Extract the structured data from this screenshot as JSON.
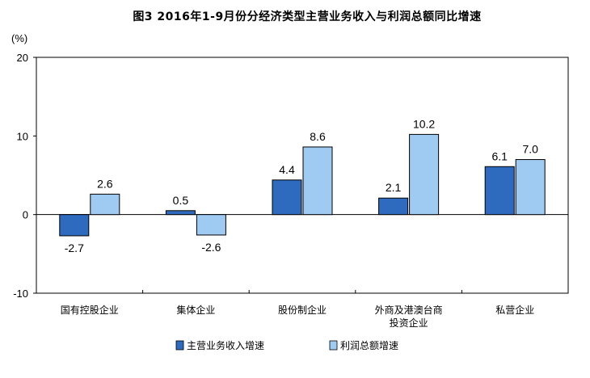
{
  "chart_data": {
    "type": "bar",
    "title": "图3 2016年1-9月份分经济类型主营业务收入与利润总额同比增速",
    "ylabel": "(%)",
    "ylim": [
      -10,
      20
    ],
    "yticks": [
      "-10",
      "0",
      "10",
      "20"
    ],
    "grid": false,
    "legend": "bottom",
    "categories": [
      [
        "国有控股企业"
      ],
      [
        "集体企业"
      ],
      [
        "股份制企业"
      ],
      [
        "外商及港澳台商",
        "投资企业"
      ],
      [
        "私营企业"
      ]
    ],
    "series": [
      {
        "name": "主营业务收入增速",
        "color": "#2e6bbf",
        "values": [
          -2.7,
          0.5,
          4.4,
          2.1,
          6.1
        ],
        "labels": [
          "-2.7",
          "0.5",
          "4.4",
          "2.1",
          "6.1"
        ]
      },
      {
        "name": "利润总额增速",
        "color": "#9fcaf2",
        "values": [
          2.6,
          -2.6,
          8.6,
          10.2,
          7.0
        ],
        "labels": [
          "2.6",
          "-2.6",
          "8.6",
          "10.2",
          "7.0"
        ]
      }
    ]
  }
}
